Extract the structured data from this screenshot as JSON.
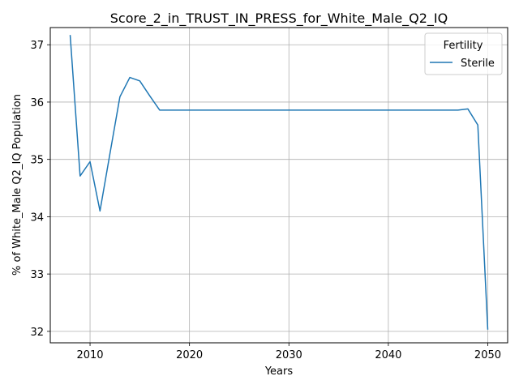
{
  "chart_data": {
    "type": "line",
    "title": "Score_2_in_TRUST_IN_PRESS_for_White_Male_Q2_IQ",
    "xlabel": "Years",
    "ylabel": "% of White_Male Q2_IQ Population",
    "xlim": [
      2006,
      2052
    ],
    "ylim": [
      31.8,
      37.3
    ],
    "xticks": [
      2010,
      2020,
      2030,
      2040,
      2050
    ],
    "yticks": [
      32,
      33,
      34,
      35,
      36,
      37
    ],
    "grid": true,
    "legend": {
      "title": "Fertility",
      "placement": "top-right"
    },
    "series": [
      {
        "name": "Sterile",
        "color": "#1f77b4",
        "x": [
          2008,
          2009,
          2010,
          2011,
          2012,
          2013,
          2014,
          2015,
          2016,
          2017,
          2018,
          2020,
          2025,
          2030,
          2035,
          2040,
          2045,
          2047,
          2048,
          2049,
          2050
        ],
        "y": [
          37.17,
          34.71,
          34.96,
          34.1,
          35.1,
          36.09,
          36.43,
          36.37,
          36.11,
          35.86,
          35.86,
          35.86,
          35.86,
          35.86,
          35.86,
          35.86,
          35.86,
          35.86,
          35.88,
          35.6,
          32.03
        ]
      }
    ]
  }
}
